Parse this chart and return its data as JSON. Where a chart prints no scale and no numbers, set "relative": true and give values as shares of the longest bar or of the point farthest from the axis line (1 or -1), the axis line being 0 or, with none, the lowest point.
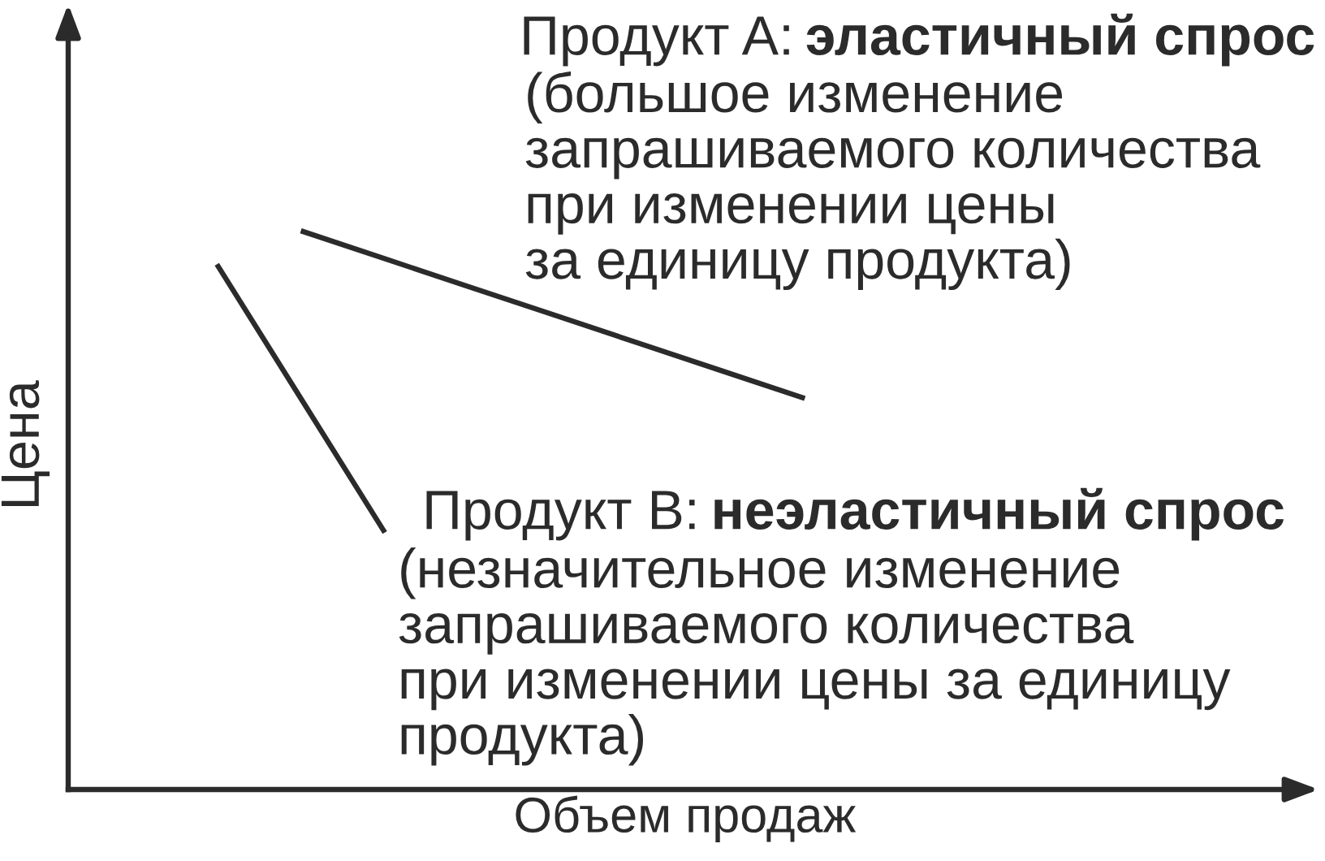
{
  "chart_data": {
    "type": "line",
    "relative": true,
    "xlabel": "Объем продаж",
    "ylabel": "Цена",
    "categories": [
      null,
      null,
      null,
      null,
      null,
      null,
      null,
      null,
      null,
      null,
      null,
      null,
      null,
      null,
      null
    ],
    "series": [
      {
        "color": "#2b2b2b",
        "values": [
          null,
          null,
          1,
          0.95,
          0.9,
          0.85,
          0.8,
          0.75,
          0.7,
          null,
          null,
          null,
          null,
          null,
          null
        ]
      },
      {
        "color": "#2b2b2b",
        "values": [
          null,
          0.94,
          0.7,
          0.46,
          null,
          null,
          null,
          null,
          null,
          null,
          null,
          null,
          null,
          null,
          null
        ]
      }
    ],
    "annotations": [
      "Продукт A:",
      "эластичный спрос",
      "(большое изменение\nзапрашиваемого количества\nпри изменении цены\nза единицу продукта)",
      "Продукт B:",
      "неэластичный спрос",
      "(незначительное изменение\nзапрашиваемого количества\nпри изменении цены за единицу\nпродукта)"
    ]
  }
}
